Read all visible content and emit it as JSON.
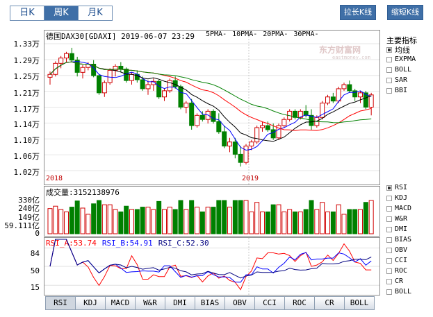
{
  "period_tabs": [
    {
      "label": "日K",
      "active": false
    },
    {
      "label": "周K",
      "active": true
    },
    {
      "label": "月K",
      "active": false
    }
  ],
  "buttons": {
    "stretch": "拉长K线",
    "shorten": "缩短K线"
  },
  "kline": {
    "title": "德国DAX30[GDAXI] 2019-06-07 23:29",
    "ma_legend": [
      {
        "label": "5PMA-",
        "color": "#0000ff"
      },
      {
        "label": "10PMA-",
        "color": "#000000"
      },
      {
        "label": "20PMA-",
        "color": "#ff0000"
      },
      {
        "label": "30PMA-",
        "color": "#008000"
      }
    ],
    "y_labels": [
      "1.33万",
      "1.29万",
      "1.25万",
      "1.21万",
      "1.17万",
      "1.14万",
      "1.10万",
      "1.06万",
      "1.02万"
    ],
    "year_labels": [
      "2018",
      "2019"
    ],
    "watermark": {
      "brand": "东方财富网",
      "domain": "eastmoney.com"
    }
  },
  "volume": {
    "title": "成交量:3152138976",
    "y_labels": [
      "330亿",
      "240亿",
      "149亿",
      "59.111亿",
      "0"
    ]
  },
  "rsi": {
    "legend": [
      {
        "label": "RSI_A:53.74",
        "color": "#ff0000"
      },
      {
        "label": "RSI_B:54.91",
        "color": "#0000ff"
      },
      {
        "label": "RSI_C:52.30",
        "color": "#000080"
      }
    ],
    "y_labels": [
      "84",
      "50",
      "15"
    ]
  },
  "main_indicators": {
    "title": "主要指标",
    "items": [
      {
        "label": "均线",
        "checked": true
      },
      {
        "label": "EXPMA",
        "checked": false
      },
      {
        "label": "BOLL",
        "checked": false
      },
      {
        "label": "SAR",
        "checked": false
      },
      {
        "label": "BBI",
        "checked": false
      }
    ]
  },
  "sub_indicators": [
    {
      "label": "RSI",
      "checked": true
    },
    {
      "label": "KDJ",
      "checked": false
    },
    {
      "label": "MACD",
      "checked": false
    },
    {
      "label": "W&R",
      "checked": false
    },
    {
      "label": "DMI",
      "checked": false
    },
    {
      "label": "BIAS",
      "checked": false
    },
    {
      "label": "OBV",
      "checked": false
    },
    {
      "label": "CCI",
      "checked": false
    },
    {
      "label": "ROC",
      "checked": false
    },
    {
      "label": "CR",
      "checked": false
    },
    {
      "label": "BOLL",
      "checked": false
    }
  ],
  "bottom_tabs": [
    {
      "label": "RSI",
      "active": true
    },
    {
      "label": "KDJ",
      "active": false
    },
    {
      "label": "MACD",
      "active": false
    },
    {
      "label": "W&R",
      "active": false
    },
    {
      "label": "DMI",
      "active": false
    },
    {
      "label": "BIAS",
      "active": false
    },
    {
      "label": "OBV",
      "active": false
    },
    {
      "label": "CCI",
      "active": false
    },
    {
      "label": "ROC",
      "active": false
    },
    {
      "label": "CR",
      "active": false
    },
    {
      "label": "BOLL",
      "active": false
    }
  ],
  "colors": {
    "up": "#d00000",
    "down": "#008000",
    "accent": "#3f6fa7"
  },
  "chart_data": {
    "type": "candlestick",
    "price_range": [
      10200,
      13300
    ],
    "candles": [
      [
        12480,
        12620,
        12300,
        12550
      ],
      [
        12550,
        12870,
        12500,
        12820
      ],
      [
        12820,
        13000,
        12700,
        12950
      ],
      [
        12950,
        13100,
        12850,
        13060
      ],
      [
        13060,
        13200,
        12850,
        12900
      ],
      [
        12900,
        12980,
        12500,
        12600
      ],
      [
        12600,
        12780,
        12450,
        12720
      ],
      [
        12720,
        12850,
        12650,
        12800
      ],
      [
        12800,
        12900,
        12480,
        12520
      ],
      [
        12520,
        12560,
        12050,
        12100
      ],
      [
        12100,
        12400,
        12000,
        12350
      ],
      [
        12350,
        12700,
        12300,
        12650
      ],
      [
        12650,
        12800,
        12500,
        12750
      ],
      [
        12750,
        12850,
        12600,
        12680
      ],
      [
        12680,
        12720,
        12350,
        12400
      ],
      [
        12400,
        12600,
        12300,
        12550
      ],
      [
        12550,
        12650,
        12350,
        12420
      ],
      [
        12420,
        12500,
        12150,
        12200
      ],
      [
        12200,
        12400,
        12050,
        12300
      ],
      [
        12300,
        12450,
        12150,
        12380
      ],
      [
        12380,
        12420,
        11950,
        12000
      ],
      [
        12000,
        12200,
        11900,
        12150
      ],
      [
        12150,
        12450,
        12100,
        12400
      ],
      [
        12400,
        12500,
        12200,
        12250
      ],
      [
        12250,
        12300,
        11700,
        11750
      ],
      [
        11750,
        11900,
        11600,
        11850
      ],
      [
        11850,
        11950,
        11200,
        11300
      ],
      [
        11300,
        11600,
        11250,
        11550
      ],
      [
        11550,
        11650,
        11400,
        11450
      ],
      [
        11450,
        11700,
        11350,
        11650
      ],
      [
        11650,
        11700,
        11350,
        11400
      ],
      [
        11400,
        11600,
        11100,
        11150
      ],
      [
        11150,
        11300,
        10750,
        10800
      ],
      [
        10800,
        11000,
        10650,
        10900
      ],
      [
        10900,
        11000,
        10500,
        10600
      ],
      [
        10600,
        10800,
        10300,
        10400
      ],
      [
        10400,
        10850,
        10350,
        10800
      ],
      [
        10800,
        10950,
        10700,
        10900
      ],
      [
        10900,
        11300,
        10850,
        11250
      ],
      [
        11250,
        11400,
        11150,
        11300
      ],
      [
        11300,
        11400,
        11150,
        11200
      ],
      [
        11200,
        11350,
        10950,
        11000
      ],
      [
        11000,
        11350,
        10950,
        11300
      ],
      [
        11300,
        11500,
        11250,
        11450
      ],
      [
        11450,
        11700,
        11400,
        11650
      ],
      [
        11650,
        11700,
        11450,
        11500
      ],
      [
        11500,
        11700,
        11450,
        11650
      ],
      [
        11650,
        11800,
        11500,
        11550
      ],
      [
        11550,
        11700,
        11200,
        11300
      ],
      [
        11300,
        11550,
        11250,
        11500
      ],
      [
        11500,
        11900,
        11450,
        11850
      ],
      [
        11850,
        12050,
        11800,
        12000
      ],
      [
        12000,
        12100,
        11850,
        11900
      ],
      [
        11900,
        12250,
        11850,
        12200
      ],
      [
        12200,
        12350,
        12150,
        12300
      ],
      [
        12300,
        12400,
        12100,
        12150
      ],
      [
        12150,
        12200,
        11900,
        12000
      ],
      [
        12000,
        12150,
        11850,
        12100
      ],
      [
        12100,
        12150,
        11700,
        11750
      ],
      [
        11750,
        12100,
        11550,
        12050
      ]
    ],
    "volume_range": [
      0,
      33000000000
    ],
    "rsi_range": [
      0,
      100
    ]
  }
}
